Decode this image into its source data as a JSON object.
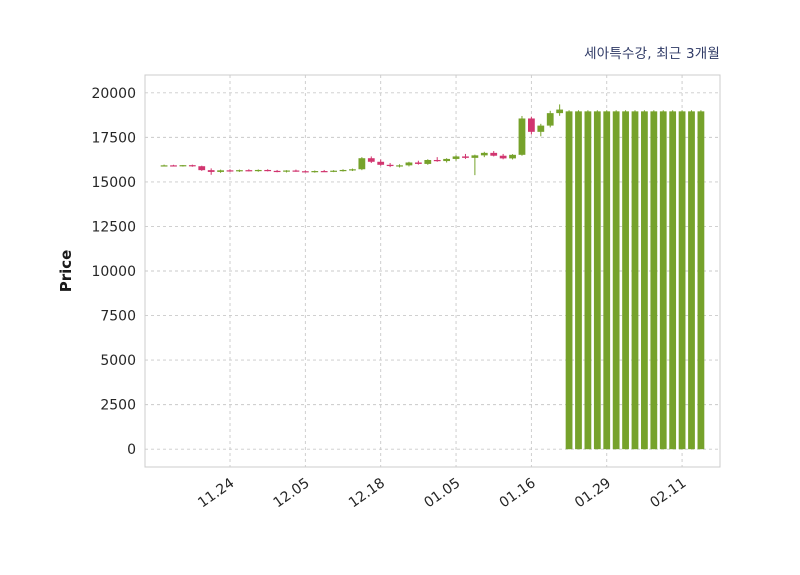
{
  "chart_data": {
    "type": "candlestick",
    "title": "세아특수강, 최근 3개월",
    "ylabel": "Price",
    "xlabel": "",
    "ylim": [
      -1000,
      21000
    ],
    "yticks": [
      0,
      2500,
      5000,
      7500,
      10000,
      12500,
      15000,
      17500,
      20000
    ],
    "xticks": [
      {
        "index": 7,
        "label": "11.24"
      },
      {
        "index": 15,
        "label": "12.05"
      },
      {
        "index": 23,
        "label": "12.18"
      },
      {
        "index": 31,
        "label": "01.05"
      },
      {
        "index": 39,
        "label": "01.16"
      },
      {
        "index": 47,
        "label": "01.29"
      },
      {
        "index": 55,
        "label": "02.11"
      }
    ],
    "grid": true,
    "legend": "none",
    "colors": {
      "up": "#76a22b",
      "down": "#d1356f",
      "grid": "#c9c9c9",
      "axis_text": "#262626",
      "title": "#2f3a66",
      "border": "#cccccc"
    },
    "candles": [
      [
        15920,
        15970,
        15880,
        15930
      ],
      [
        15930,
        15960,
        15880,
        15900
      ],
      [
        15900,
        15950,
        15860,
        15940
      ],
      [
        15940,
        15970,
        15850,
        15880
      ],
      [
        15880,
        15910,
        15620,
        15660
      ],
      [
        15660,
        15760,
        15400,
        15560
      ],
      [
        15560,
        15690,
        15510,
        15650
      ],
      [
        15650,
        15710,
        15570,
        15610
      ],
      [
        15610,
        15690,
        15560,
        15660
      ],
      [
        15660,
        15710,
        15590,
        15630
      ],
      [
        15630,
        15700,
        15570,
        15670
      ],
      [
        15670,
        15710,
        15590,
        15620
      ],
      [
        15620,
        15670,
        15540,
        15580
      ],
      [
        15580,
        15660,
        15530,
        15640
      ],
      [
        15640,
        15690,
        15570,
        15600
      ],
      [
        15600,
        15650,
        15530,
        15570
      ],
      [
        15570,
        15640,
        15520,
        15610
      ],
      [
        15610,
        15670,
        15560,
        15590
      ],
      [
        15590,
        15660,
        15550,
        15630
      ],
      [
        15630,
        15710,
        15580,
        15670
      ],
      [
        15670,
        15750,
        15610,
        15710
      ],
      [
        15710,
        16390,
        15660,
        16330
      ],
      [
        16330,
        16430,
        16060,
        16130
      ],
      [
        16130,
        16260,
        15910,
        15960
      ],
      [
        15960,
        16060,
        15830,
        15890
      ],
      [
        15890,
        15990,
        15810,
        15930
      ],
      [
        15930,
        16130,
        15870,
        16090
      ],
      [
        16090,
        16190,
        15970,
        16010
      ],
      [
        16010,
        16270,
        15960,
        16230
      ],
      [
        16230,
        16390,
        16130,
        16170
      ],
      [
        16170,
        16330,
        16090,
        16290
      ],
      [
        16290,
        16490,
        16190,
        16430
      ],
      [
        16430,
        16570,
        16290,
        16350
      ],
      [
        16350,
        16530,
        15380,
        16490
      ],
      [
        16490,
        16690,
        16390,
        16630
      ],
      [
        16630,
        16730,
        16430,
        16470
      ],
      [
        16470,
        16570,
        16270,
        16320
      ],
      [
        16320,
        16560,
        16260,
        16520
      ],
      [
        16520,
        18700,
        16470,
        18560
      ],
      [
        18560,
        18660,
        17660,
        17810
      ],
      [
        17810,
        18260,
        17560,
        18160
      ],
      [
        18160,
        18990,
        18060,
        18860
      ],
      [
        18860,
        19350,
        18710,
        19060
      ],
      [
        0,
        19020,
        0,
        18960
      ],
      [
        0,
        19020,
        0,
        18960
      ],
      [
        0,
        19020,
        0,
        18960
      ],
      [
        0,
        19020,
        0,
        18960
      ],
      [
        0,
        19020,
        0,
        18960
      ],
      [
        0,
        19020,
        0,
        18960
      ],
      [
        0,
        19020,
        0,
        18960
      ],
      [
        0,
        19020,
        0,
        18960
      ],
      [
        0,
        19020,
        0,
        18960
      ],
      [
        0,
        19020,
        0,
        18960
      ],
      [
        0,
        19020,
        0,
        18960
      ],
      [
        0,
        19020,
        0,
        18960
      ],
      [
        0,
        19020,
        0,
        18960
      ],
      [
        0,
        19020,
        0,
        18960
      ],
      [
        0,
        19020,
        0,
        18960
      ]
    ]
  }
}
